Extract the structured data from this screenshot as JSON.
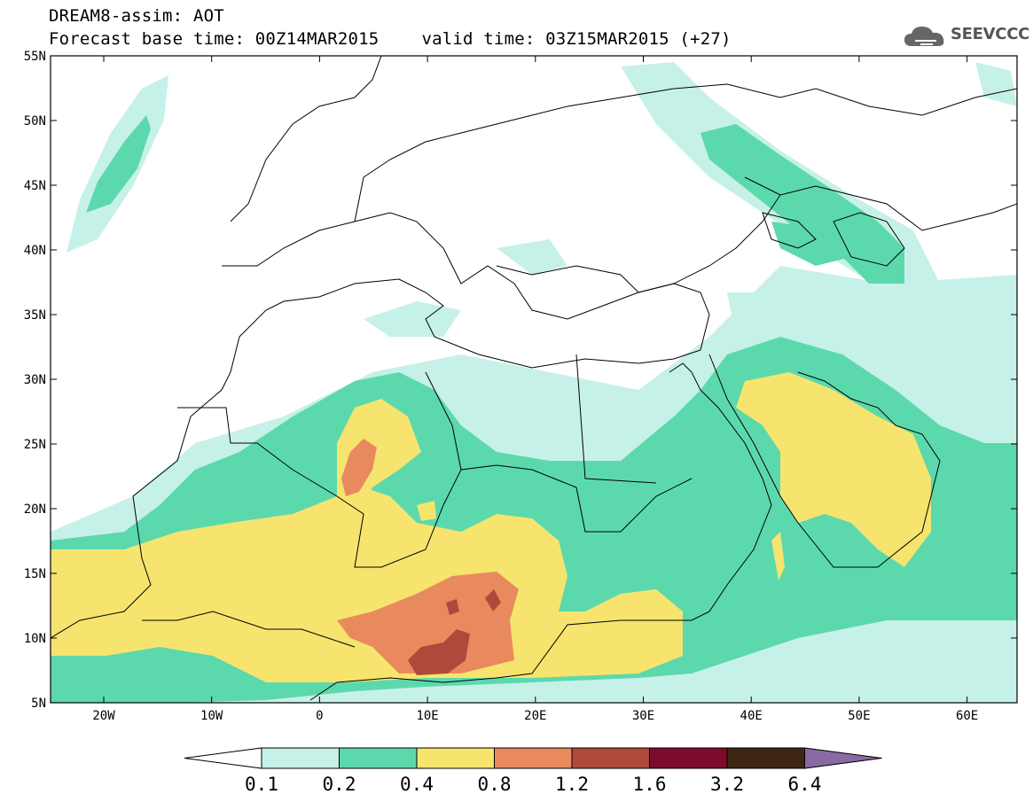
{
  "header": {
    "title": "DREAM8-assim: AOT",
    "base_time": "Forecast base time: 00Z14MAR2015",
    "valid_time": "valid time: 03Z15MAR2015 (+27)"
  },
  "logo": {
    "text": "SEEVCCC",
    "icon": "cloud-icon"
  },
  "map": {
    "lat_labels": [
      "55N",
      "50N",
      "45N",
      "40N",
      "35N",
      "30N",
      "25N",
      "20N",
      "15N",
      "10N",
      "5N"
    ],
    "lon_labels": [
      "20W",
      "10W",
      "0",
      "10E",
      "20E",
      "30E",
      "40E",
      "50E",
      "60E"
    ]
  },
  "colorbar": {
    "levels": [
      "0.1",
      "0.2",
      "0.4",
      "0.8",
      "1.2",
      "1.6",
      "3.2",
      "6.4"
    ],
    "colors": [
      "#ffffff",
      "#c6f1e8",
      "#5cd9ac",
      "#f6e46e",
      "#e88a5e",
      "#ad4a3c",
      "#7c0b2c",
      "#3e2614",
      "#8a6aa2"
    ]
  },
  "palette": {
    "c01": "#c6f1e8",
    "c02": "#5cd9ac",
    "c04": "#f6e46e",
    "c08": "#e88a5e",
    "c12": "#ad4a3c"
  }
}
